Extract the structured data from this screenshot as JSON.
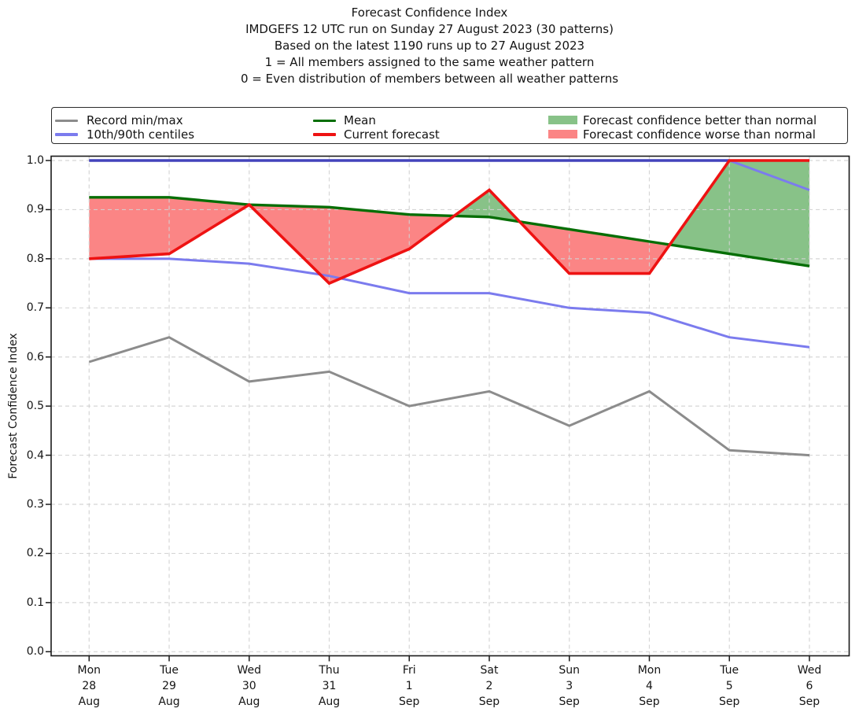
{
  "title": {
    "line1": "Forecast Confidence Index",
    "line2": "IMDGEFS 12 UTC run on Sunday 27 August 2023 (30 patterns)",
    "line3": "Based on the latest 1190 runs up to 27 August 2023",
    "line4": "1 = All members assigned to the same weather pattern",
    "line5": "0 = Even distribution of members between all weather patterns"
  },
  "legend": {
    "record_minmax": "Record min/max",
    "centiles": "10th/90th centiles",
    "mean": "Mean",
    "current": "Current forecast",
    "better": "Forecast confidence better than normal",
    "worse": "Forecast confidence worse than normal"
  },
  "axis": {
    "ylabel": "Forecast Confidence Index",
    "yticks": [
      "0.0",
      "0.1",
      "0.2",
      "0.3",
      "0.4",
      "0.5",
      "0.6",
      "0.7",
      "0.8",
      "0.9",
      "1.0"
    ],
    "xticks": [
      {
        "day": "Mon",
        "date": "28",
        "month": "Aug"
      },
      {
        "day": "Tue",
        "date": "29",
        "month": "Aug"
      },
      {
        "day": "Wed",
        "date": "30",
        "month": "Aug"
      },
      {
        "day": "Thu",
        "date": "31",
        "month": "Aug"
      },
      {
        "day": "Fri",
        "date": "1",
        "month": "Sep"
      },
      {
        "day": "Sat",
        "date": "2",
        "month": "Sep"
      },
      {
        "day": "Sun",
        "date": "3",
        "month": "Sep"
      },
      {
        "day": "Mon",
        "date": "4",
        "month": "Sep"
      },
      {
        "day": "Tue",
        "date": "5",
        "month": "Sep"
      },
      {
        "day": "Wed",
        "date": "6",
        "month": "Sep"
      }
    ]
  },
  "colors": {
    "record": "#8c8c8c",
    "centile": "#7b7bee",
    "p90_overlap": "#4343bc",
    "mean": "#056e05",
    "current": "#ee1212",
    "fill_better": "#88c288",
    "fill_worse": "#fb8585",
    "grid": "#d2d2d2",
    "spine": "#1a1a1a",
    "text": "#141414"
  },
  "chart_data": {
    "type": "line",
    "title": "Forecast Confidence Index",
    "subtitle": "IMDGEFS 12 UTC run on Sunday 27 August 2023 (30 patterns); Based on the latest 1190 runs up to 27 August 2023",
    "xlabel": "",
    "ylabel": "Forecast Confidence Index",
    "ylim": [
      0.0,
      1.0
    ],
    "grid": "on",
    "legend_position": "top",
    "x_categories": [
      "Mon 28 Aug",
      "Tue 29 Aug",
      "Wed 30 Aug",
      "Thu 31 Aug",
      "Fri 1 Sep",
      "Sat 2 Sep",
      "Sun 3 Sep",
      "Mon 4 Sep",
      "Tue 5 Sep",
      "Wed 6 Sep"
    ],
    "series": [
      {
        "name": "Record max",
        "color_key": "record",
        "values": [
          1.0,
          1.0,
          1.0,
          1.0,
          1.0,
          1.0,
          1.0,
          1.0,
          1.0,
          1.0
        ]
      },
      {
        "name": "Record min",
        "color_key": "record",
        "values": [
          0.59,
          0.64,
          0.55,
          0.57,
          0.5,
          0.53,
          0.46,
          0.53,
          0.41,
          0.4
        ]
      },
      {
        "name": "90th centile",
        "color_key": "centile",
        "values": [
          1.0,
          1.0,
          1.0,
          1.0,
          1.0,
          1.0,
          1.0,
          1.0,
          1.0,
          0.94
        ]
      },
      {
        "name": "10th centile",
        "color_key": "centile",
        "values": [
          0.8,
          0.8,
          0.79,
          0.765,
          0.73,
          0.73,
          0.7,
          0.69,
          0.64,
          0.62
        ]
      },
      {
        "name": "Mean",
        "color_key": "mean",
        "values": [
          0.925,
          0.925,
          0.91,
          0.905,
          0.89,
          0.885,
          0.86,
          0.835,
          0.81,
          0.785
        ]
      },
      {
        "name": "Current forecast",
        "color_key": "current",
        "values": [
          0.8,
          0.81,
          0.91,
          0.75,
          0.82,
          0.94,
          0.77,
          0.77,
          1.0,
          1.0
        ]
      }
    ],
    "fills": {
      "between": [
        "Current forecast",
        "Mean"
      ],
      "above_mean_color_key": "fill_better",
      "below_mean_color_key": "fill_worse"
    }
  }
}
